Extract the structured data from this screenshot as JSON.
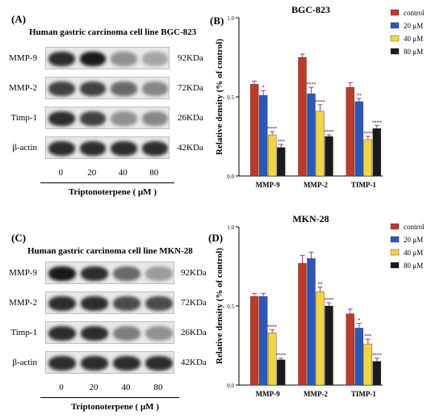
{
  "panels": {
    "A": {
      "letter": "(A)",
      "title": "Human gastric carcinoma cell line BGC-823"
    },
    "C": {
      "letter": "(C)",
      "title": "Human gastric carcinoma cell line MKN-28"
    },
    "B": {
      "letter": "(B)"
    },
    "D": {
      "letter": "(D)"
    }
  },
  "blots": {
    "rows": [
      {
        "protein": "MMP-9",
        "kda": "92KDa"
      },
      {
        "protein": "MMP-2",
        "kda": "72KDa"
      },
      {
        "protein": "Timp-1",
        "kda": "26KDa"
      },
      {
        "protein": "β-actin",
        "kda": "42KDa"
      }
    ],
    "lanes": [
      "0",
      "20",
      "40",
      "80"
    ],
    "xlabel": "Triptonoterpene ( μM )",
    "intensity_A": [
      [
        0.85,
        0.95,
        0.35,
        0.25
      ],
      [
        0.75,
        0.75,
        0.55,
        0.4
      ],
      [
        0.85,
        0.75,
        0.35,
        0.4
      ],
      [
        0.85,
        0.85,
        0.85,
        0.85
      ]
    ],
    "intensity_C": [
      [
        0.95,
        0.85,
        0.55,
        0.3
      ],
      [
        0.85,
        0.85,
        0.7,
        0.7
      ],
      [
        0.85,
        0.85,
        0.45,
        0.35
      ],
      [
        0.85,
        0.85,
        0.85,
        0.85
      ]
    ]
  },
  "legend": {
    "entries": [
      "control",
      "20 μM",
      "40 μM",
      "80 μM"
    ],
    "colors": [
      "#c0392b",
      "#2e57b7",
      "#f2d541",
      "#1a1a1a"
    ]
  },
  "chart_data": [
    {
      "type": "bar",
      "title": "BGC-823",
      "ylabel": "Relative density (% of control)",
      "xlabel": "",
      "categories": [
        "MMP-9",
        "MMP-2",
        "TIMP-1"
      ],
      "ylim": [
        0,
        1.0
      ],
      "yticks": [
        "0.0",
        "0.5",
        "1.0"
      ],
      "series": [
        {
          "name": "control",
          "values": [
            0.58,
            0.75,
            0.56
          ],
          "errors": [
            0.02,
            0.02,
            0.03
          ],
          "stars": [
            "",
            "",
            ""
          ]
        },
        {
          "name": "20 μM",
          "values": [
            0.51,
            0.52,
            0.47
          ],
          "errors": [
            0.03,
            0.04,
            0.02
          ],
          "stars": [
            "*",
            "****",
            "**"
          ]
        },
        {
          "name": "40 μM",
          "values": [
            0.26,
            0.41,
            0.23
          ],
          "errors": [
            0.02,
            0.04,
            0.02
          ],
          "stars": [
            "****",
            "****",
            "****"
          ]
        },
        {
          "name": "80 μM",
          "values": [
            0.18,
            0.25,
            0.3
          ],
          "errors": [
            0.02,
            0.01,
            0.02
          ],
          "stars": [
            "***",
            "****",
            "****"
          ]
        }
      ]
    },
    {
      "type": "bar",
      "title": "MKN-28",
      "ylabel": "Relative density (% of control)",
      "xlabel": "",
      "categories": [
        "MMP-9",
        "MMP-2",
        "TIMP-1"
      ],
      "ylim": [
        0,
        1.0
      ],
      "yticks": [
        "0.0",
        "0.5",
        "1.0"
      ],
      "series": [
        {
          "name": "control",
          "values": [
            0.56,
            0.77,
            0.45
          ],
          "errors": [
            0.02,
            0.05,
            0.03
          ],
          "stars": [
            "",
            "",
            ""
          ]
        },
        {
          "name": "20 μM",
          "values": [
            0.56,
            0.8,
            0.36
          ],
          "errors": [
            0.02,
            0.04,
            0.03
          ],
          "stars": [
            "",
            "",
            "*"
          ]
        },
        {
          "name": "40 μM",
          "values": [
            0.33,
            0.59,
            0.26
          ],
          "errors": [
            0.02,
            0.03,
            0.03
          ],
          "stars": [
            "****",
            "**",
            "***"
          ]
        },
        {
          "name": "80 μM",
          "values": [
            0.16,
            0.5,
            0.15
          ],
          "errors": [
            0.01,
            0.02,
            0.02
          ],
          "stars": [
            "****",
            "****",
            "****"
          ]
        }
      ]
    }
  ]
}
